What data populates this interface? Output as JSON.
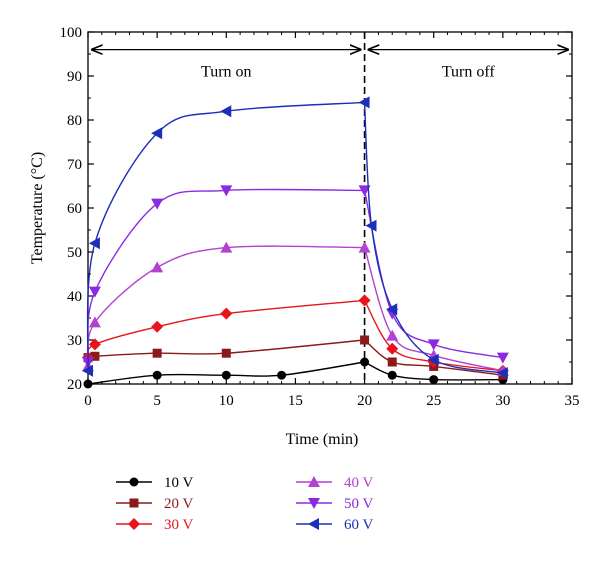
{
  "chart_data": {
    "type": "line",
    "title": "",
    "xlabel": "Time (min)",
    "ylabel": "Temperature (°C)",
    "xlim": [
      0,
      35
    ],
    "ylim": [
      20,
      100
    ],
    "xticks": [
      0,
      5,
      10,
      15,
      20,
      25,
      30,
      35
    ],
    "yticks": [
      20,
      30,
      40,
      50,
      60,
      70,
      80,
      90,
      100
    ],
    "grid": false,
    "legend_position": "bottom",
    "annotations": [
      {
        "text": "Turn on",
        "from_x": 0,
        "to_x": 20,
        "y": 96
      },
      {
        "text": "Turn off",
        "from_x": 20,
        "to_x": 35,
        "y": 96
      }
    ],
    "divider_x": 20,
    "series": [
      {
        "name": "10 V",
        "color": "#000000",
        "marker": "circle",
        "x": [
          0,
          5,
          10,
          14,
          20,
          22,
          25,
          30
        ],
        "y": [
          20,
          22,
          22,
          22,
          25,
          22,
          21,
          21
        ]
      },
      {
        "name": "20 V",
        "color": "#8b1a1a",
        "marker": "square",
        "x": [
          0,
          0.5,
          5,
          10,
          20,
          22,
          25,
          30
        ],
        "y": [
          26,
          26.3,
          27,
          27,
          30,
          25,
          24,
          22
        ]
      },
      {
        "name": "30 V",
        "color": "#e8141c",
        "marker": "diamond",
        "x": [
          0,
          0.5,
          5,
          10,
          20,
          22,
          25,
          30
        ],
        "y": [
          26,
          29,
          33,
          36,
          39,
          28,
          25,
          23
        ]
      },
      {
        "name": "40 V",
        "color": "#b341d1",
        "marker": "triangle-up",
        "x": [
          0,
          0.5,
          5,
          10,
          20,
          22,
          25,
          30
        ],
        "y": [
          24,
          34,
          46.5,
          51,
          51,
          31,
          26.5,
          23
        ]
      },
      {
        "name": "50 V",
        "color": "#8a2be2",
        "marker": "triangle-down",
        "x": [
          0,
          0.5,
          5,
          10,
          20,
          22,
          25,
          30
        ],
        "y": [
          25,
          41,
          61,
          64,
          64,
          36,
          29,
          26
        ]
      },
      {
        "name": "60 V",
        "color": "#1c2fb8",
        "marker": "triangle-left",
        "x": [
          0,
          0.5,
          5,
          10,
          20,
          20.5,
          22,
          25,
          30
        ],
        "y": [
          23,
          52,
          77,
          82,
          84,
          56,
          37,
          25.5,
          22.5
        ]
      }
    ]
  }
}
